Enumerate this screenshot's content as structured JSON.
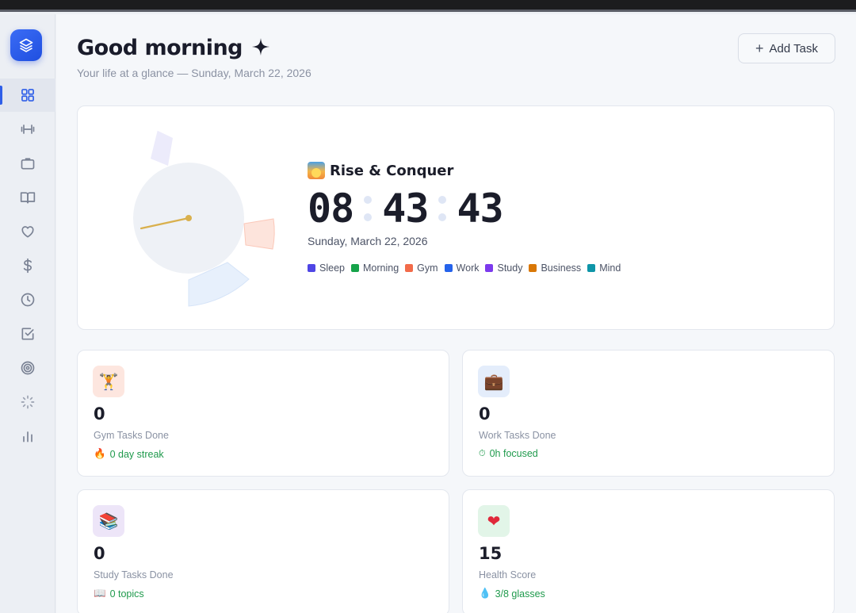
{
  "header": {
    "greeting": "Good morning",
    "sparkle_icon": "sparkle-icon",
    "subtitle": "Your life at a glance — Sunday, March 22, 2026",
    "add_task_label": "Add Task"
  },
  "sidebar": {
    "logo_icon": "layers-icon",
    "accent_color": "#2f5fe8",
    "items": [
      {
        "icon": "dashboard-grid-icon",
        "active": true
      },
      {
        "icon": "dumbbell-icon"
      },
      {
        "icon": "briefcase-icon"
      },
      {
        "icon": "book-icon"
      },
      {
        "icon": "heart-icon"
      },
      {
        "icon": "dollar-icon"
      },
      {
        "icon": "clock-icon"
      },
      {
        "icon": "checkbox-icon"
      },
      {
        "icon": "target-icon"
      },
      {
        "icon": "loader-icon"
      },
      {
        "icon": "bar-chart-icon"
      }
    ]
  },
  "hero": {
    "phase_title": "Rise & Conquer",
    "phase_icon": "sunrise-icon",
    "time": {
      "hours": "08",
      "minutes": "43",
      "seconds": "43"
    },
    "date": "Sunday, March 22, 2026",
    "legend": [
      {
        "label": "Sleep",
        "color": "#4f46e5"
      },
      {
        "label": "Morning",
        "color": "#16a34a"
      },
      {
        "label": "Gym",
        "color": "#f26b4a"
      },
      {
        "label": "Work",
        "color": "#2563eb"
      },
      {
        "label": "Study",
        "color": "#7c3aed"
      },
      {
        "label": "Business",
        "color": "#d97706"
      },
      {
        "label": "Mind",
        "color": "#0e95a8"
      }
    ]
  },
  "stats": [
    {
      "icon": "weightlifter-icon",
      "glyph": "🏋",
      "icon_bg": "#fde6df",
      "value": "0",
      "label": "Gym Tasks Done",
      "sub_icon": "fire-icon",
      "sub_glyph": "🔥",
      "sub": "0 day streak"
    },
    {
      "icon": "briefcase-icon",
      "glyph": "💼",
      "icon_bg": "#e4edfb",
      "value": "0",
      "label": "Work Tasks Done",
      "sub_icon": "stopwatch-icon",
      "sub_glyph": "⏱",
      "sub": "0h focused"
    },
    {
      "icon": "books-icon",
      "glyph": "📚",
      "icon_bg": "#ede5f8",
      "value": "0",
      "label": "Study Tasks Done",
      "sub_icon": "open-book-icon",
      "sub_glyph": "📖",
      "sub": "0 topics"
    },
    {
      "icon": "heart-icon",
      "glyph": "❤",
      "icon_bg": "#e2f5e8",
      "value": "15",
      "label": "Health Score",
      "sub_icon": "droplet-icon",
      "sub_glyph": "💧",
      "sub": "3/8 glasses"
    }
  ]
}
